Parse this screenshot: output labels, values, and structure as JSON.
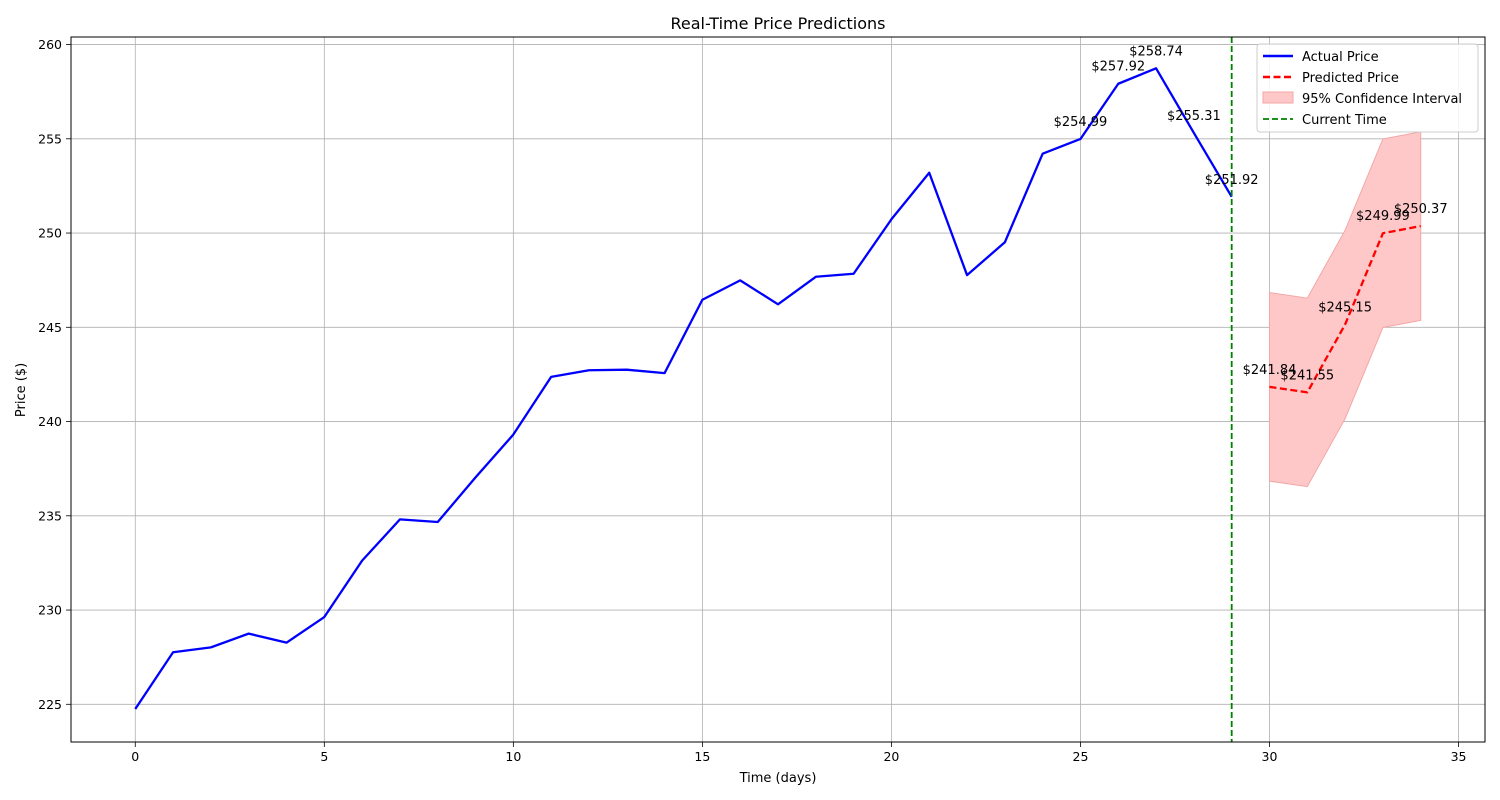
{
  "chart_data": {
    "type": "line",
    "title": "Real-Time Price Predictions",
    "xlabel": "Time (days)",
    "ylabel": "Price ($)",
    "xlim": [
      -1.7,
      35.7
    ],
    "ylim": [
      223.0,
      260.4
    ],
    "xticks": [
      0,
      5,
      10,
      15,
      20,
      25,
      30,
      35
    ],
    "yticks": [
      225,
      230,
      235,
      240,
      245,
      250,
      255,
      260
    ],
    "grid": true,
    "legend_position": "top-right",
    "current_time": 29,
    "colors": {
      "actual": "#0000ff",
      "predicted": "#ff0000",
      "ci_fill": "#ffc8c8",
      "ci_edge": "#f4a6a6",
      "current_time": "#008000",
      "grid": "#b0b0b0"
    },
    "series": [
      {
        "name": "Actual Price",
        "style": "solid",
        "x": [
          0,
          1,
          2,
          3,
          4,
          5,
          6,
          7,
          8,
          9,
          10,
          11,
          12,
          13,
          14,
          15,
          16,
          17,
          18,
          19,
          20,
          21,
          22,
          23,
          24,
          25,
          26,
          27,
          28,
          29
        ],
        "values": [
          224.75,
          227.76,
          228.02,
          228.75,
          228.27,
          229.63,
          232.62,
          234.81,
          234.67,
          237.04,
          239.31,
          242.37,
          242.72,
          242.75,
          242.57,
          246.46,
          247.49,
          246.22,
          247.68,
          247.84,
          250.73,
          253.2,
          247.77,
          249.51,
          254.21,
          254.99,
          257.92,
          258.74,
          255.31,
          251.92
        ]
      },
      {
        "name": "Predicted Price",
        "style": "dashed",
        "x": [
          30,
          31,
          32,
          33,
          34
        ],
        "values": [
          241.84,
          241.55,
          245.15,
          249.99,
          250.37
        ]
      }
    ],
    "confidence_interval": {
      "name": "95% Confidence Interval",
      "x": [
        30,
        31,
        32,
        33,
        34
      ],
      "lower": [
        236.84,
        236.55,
        240.15,
        244.99,
        245.37
      ],
      "upper": [
        246.84,
        246.55,
        250.15,
        254.99,
        255.37
      ]
    },
    "current_time_label": "Current Time",
    "annotations": [
      {
        "x": 25,
        "y": 254.99,
        "text": "$254.99"
      },
      {
        "x": 26,
        "y": 257.92,
        "text": "$257.92"
      },
      {
        "x": 27,
        "y": 258.74,
        "text": "$258.74"
      },
      {
        "x": 28,
        "y": 255.31,
        "text": "$255.31"
      },
      {
        "x": 29,
        "y": 251.92,
        "text": "$251.92"
      },
      {
        "x": 30,
        "y": 241.84,
        "text": "$241.84"
      },
      {
        "x": 31,
        "y": 241.55,
        "text": "$241.55"
      },
      {
        "x": 32,
        "y": 245.15,
        "text": "$245.15"
      },
      {
        "x": 33,
        "y": 249.99,
        "text": "$249.99"
      },
      {
        "x": 34,
        "y": 250.37,
        "text": "$250.37"
      }
    ],
    "legend": [
      "Actual Price",
      "Predicted Price",
      "95% Confidence Interval",
      "Current Time"
    ]
  }
}
